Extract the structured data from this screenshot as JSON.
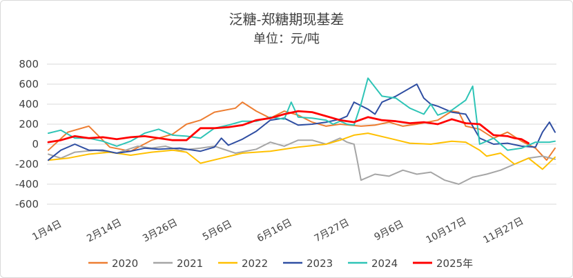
{
  "chart_data": {
    "type": "line",
    "title": "泛糖-郑糖期现基差",
    "subtitle": "单位：元/吨",
    "ylim": [
      -600,
      800
    ],
    "yticks": [
      800,
      600,
      400,
      200,
      0,
      -200,
      -400,
      -600
    ],
    "xlim": [
      0,
      365
    ],
    "xtick_labels": [
      "1月4日",
      "2月14日",
      "3月26日",
      "5月6日",
      "6月16日",
      "7月27日",
      "9月6日",
      "10月17日",
      "11月27日"
    ],
    "xtick_days": [
      4,
      45,
      85,
      126,
      167,
      208,
      249,
      290,
      331
    ],
    "series": [
      {
        "name": "2020",
        "color": "#ED7D31",
        "x": [
          1,
          15,
          30,
          45,
          60,
          75,
          90,
          96,
          100,
          110,
          120,
          135,
          140,
          150,
          160,
          170,
          180,
          190,
          200,
          210,
          225,
          235,
          245,
          255,
          265,
          280,
          290,
          295,
          300,
          310,
          320,
          330,
          340,
          350,
          358,
          364
        ],
        "y": [
          -60,
          120,
          180,
          -30,
          -70,
          40,
          100,
          160,
          200,
          240,
          320,
          360,
          420,
          330,
          260,
          330,
          290,
          220,
          180,
          200,
          180,
          190,
          220,
          180,
          200,
          240,
          330,
          320,
          180,
          150,
          60,
          120,
          30,
          -40,
          -160,
          -40
        ]
      },
      {
        "name": "2021",
        "color": "#A5A5A5",
        "x": [
          1,
          10,
          20,
          35,
          50,
          65,
          75,
          85,
          95,
          110,
          120,
          135,
          150,
          160,
          170,
          180,
          190,
          200,
          210,
          215,
          220,
          222,
          225,
          235,
          245,
          255,
          265,
          275,
          285,
          295,
          305,
          315,
          325,
          335,
          345,
          355,
          364
        ],
        "y": [
          -100,
          -140,
          -80,
          -60,
          -90,
          -20,
          -40,
          -20,
          -60,
          -40,
          -20,
          -90,
          -50,
          20,
          -20,
          40,
          40,
          0,
          60,
          20,
          0,
          -140,
          -360,
          -300,
          -320,
          -260,
          -300,
          -280,
          -360,
          -400,
          -330,
          -300,
          -260,
          -200,
          -140,
          -120,
          -150
        ]
      },
      {
        "name": "2022",
        "color": "#FFC000",
        "x": [
          1,
          15,
          30,
          45,
          60,
          75,
          90,
          100,
          110,
          125,
          140,
          160,
          180,
          200,
          210,
          220,
          230,
          245,
          260,
          275,
          290,
          300,
          310,
          315,
          325,
          335,
          345,
          355,
          364
        ],
        "y": [
          -160,
          -140,
          -100,
          -80,
          -110,
          -80,
          -60,
          -80,
          -190,
          -140,
          -90,
          -70,
          -30,
          0,
          40,
          90,
          110,
          60,
          10,
          0,
          30,
          20,
          -60,
          -120,
          -90,
          -200,
          -140,
          -250,
          -130
        ]
      },
      {
        "name": "2023",
        "color": "#2F4EA2",
        "x": [
          1,
          10,
          20,
          30,
          40,
          50,
          60,
          70,
          80,
          95,
          110,
          120,
          125,
          130,
          140,
          150,
          160,
          170,
          180,
          190,
          200,
          210,
          215,
          220,
          230,
          235,
          240,
          250,
          260,
          265,
          270,
          275,
          280,
          290,
          300,
          310,
          320,
          330,
          340,
          350,
          355,
          360,
          364
        ],
        "y": [
          -160,
          -60,
          0,
          -60,
          -60,
          -90,
          -70,
          -40,
          -50,
          -40,
          -70,
          -30,
          60,
          -10,
          50,
          130,
          240,
          260,
          190,
          200,
          220,
          250,
          280,
          420,
          350,
          300,
          420,
          480,
          560,
          600,
          460,
          400,
          380,
          320,
          300,
          60,
          0,
          10,
          -20,
          -30,
          120,
          220,
          120
        ]
      },
      {
        "name": "2024",
        "color": "#2EC4B6",
        "x": [
          1,
          10,
          20,
          30,
          40,
          50,
          60,
          70,
          80,
          90,
          100,
          110,
          120,
          130,
          140,
          150,
          160,
          170,
          175,
          180,
          190,
          200,
          205,
          210,
          215,
          220,
          225,
          230,
          240,
          250,
          260,
          270,
          275,
          280,
          290,
          300,
          305,
          310,
          320,
          330,
          340,
          350,
          360,
          364
        ],
        "y": [
          110,
          140,
          60,
          60,
          30,
          -20,
          30,
          110,
          150,
          90,
          80,
          60,
          160,
          190,
          230,
          230,
          270,
          250,
          420,
          270,
          260,
          240,
          200,
          230,
          200,
          190,
          400,
          660,
          480,
          460,
          360,
          300,
          400,
          290,
          340,
          440,
          580,
          0,
          60,
          -60,
          -40,
          20,
          20,
          30
        ]
      },
      {
        "name": "2025年",
        "color": "#FF0000",
        "x": [
          1,
          10,
          20,
          30,
          40,
          50,
          60,
          70,
          80,
          90,
          100,
          110,
          120,
          130,
          140,
          150,
          160,
          170,
          180,
          190,
          200,
          210,
          220,
          230,
          240,
          250,
          260,
          270,
          280,
          290,
          300,
          310,
          320,
          330,
          335,
          340,
          345
        ],
        "y": [
          20,
          40,
          80,
          60,
          70,
          50,
          70,
          80,
          60,
          40,
          40,
          160,
          160,
          170,
          190,
          240,
          260,
          300,
          330,
          320,
          280,
          240,
          220,
          270,
          240,
          230,
          210,
          220,
          200,
          250,
          210,
          200,
          90,
          80,
          60,
          50,
          10
        ]
      }
    ]
  }
}
